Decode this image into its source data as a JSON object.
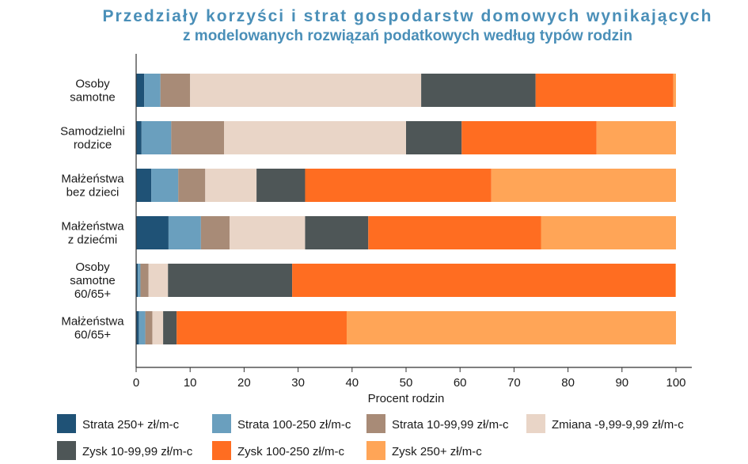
{
  "chart_data": {
    "type": "bar",
    "orientation": "horizontal",
    "stacked": true,
    "title_line1": "Przedziały korzyści i strat gospodarstw domowych wynikających",
    "title_line2": "z modelowanych rozwiązań podatkowych według typów rodzin",
    "xlabel": "Procent rodzin",
    "xlim": [
      0,
      100
    ],
    "xticks": [
      0,
      10,
      20,
      30,
      40,
      50,
      60,
      70,
      80,
      90,
      100
    ],
    "categories": [
      [
        "Osoby",
        "samotne"
      ],
      [
        "Samodzielni",
        "rodzice"
      ],
      [
        "Małżeństwa",
        "bez dzieci"
      ],
      [
        "Małżeństwa",
        "z dziećmi"
      ],
      [
        "Osoby",
        "samotne",
        "60/65+"
      ],
      [
        "Małżeństwa",
        "60/65+"
      ]
    ],
    "series": [
      {
        "name": "Strata 250+ zł/m-c",
        "color": "#1f5276",
        "values": [
          1.5,
          1.0,
          2.8,
          6.0,
          0.3,
          0.5
        ]
      },
      {
        "name": "Strata 100-250 zł/m-c",
        "color": "#6a9fbe",
        "values": [
          3.0,
          5.5,
          5.0,
          6.0,
          0.5,
          1.2
        ]
      },
      {
        "name": "Strata 10-99,99 zł/m-c",
        "color": "#a88b77",
        "values": [
          5.5,
          9.8,
          5.0,
          5.3,
          1.5,
          1.3
        ]
      },
      {
        "name": "Zmiana -9,99-9,99 zł/m-c",
        "color": "#e9d5c7",
        "values": [
          42.8,
          33.7,
          9.5,
          14.0,
          3.6,
          2.0
        ]
      },
      {
        "name": "Zysk 10-99,99 zł/m-c",
        "color": "#4e5657",
        "values": [
          21.2,
          10.3,
          9.0,
          11.7,
          23.0,
          2.5
        ]
      },
      {
        "name": "Zysk 100-250 zł/m-c",
        "color": "#ff6d21",
        "values": [
          25.5,
          25.0,
          34.5,
          32.0,
          71.0,
          31.5
        ]
      },
      {
        "name": "Zysk 250+ zł/m-c",
        "color": "#ffa557",
        "values": [
          0.5,
          14.7,
          34.2,
          25.0,
          0.1,
          61.0
        ]
      }
    ]
  }
}
